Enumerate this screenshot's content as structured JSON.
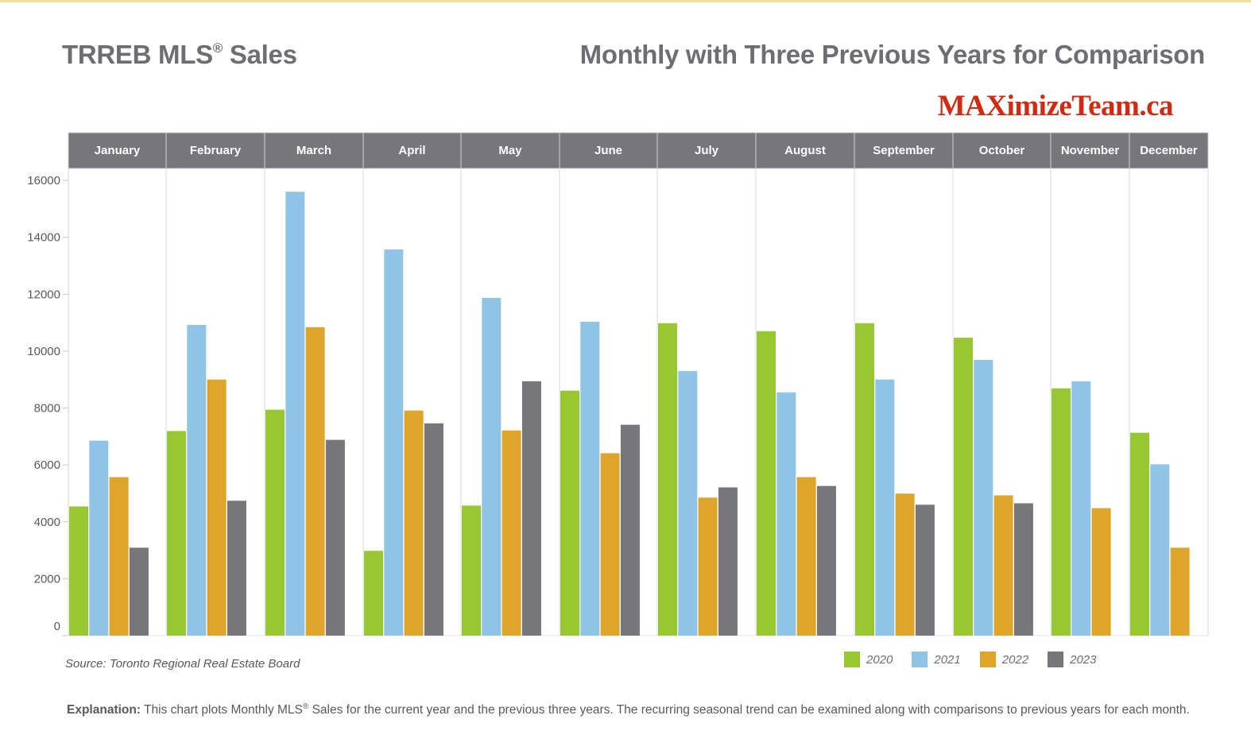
{
  "header": {
    "title_main": "TRREB MLS",
    "title_reg": "®",
    "title_suffix": " Sales",
    "subtitle": "Monthly with Three Previous Years for Comparison",
    "brand": "MAXimizeTeam.ca"
  },
  "footer": {
    "source": "Source: Toronto Regional Real Estate Board",
    "explanation_label": "Explanation:",
    "explanation_pre": " This chart plots Monthly MLS",
    "explanation_reg": "®",
    "explanation_post": " Sales for the current year and the previous three years. The recurring seasonal trend can be examined along with comparisons to previous years for each month."
  },
  "colors": {
    "2020": "#97c732",
    "2021": "#8fc4e6",
    "2022": "#dfa52a",
    "2023": "#77777b",
    "header_bg": "#77777b",
    "grid": "#d9d9d9"
  },
  "chart_data": {
    "type": "bar",
    "title": "TRREB MLS® Sales — Monthly with Three Previous Years for Comparison",
    "xlabel": "",
    "ylabel": "",
    "ylim": [
      0,
      16000
    ],
    "yticks": [
      0,
      2000,
      4000,
      6000,
      8000,
      10000,
      12000,
      14000,
      16000
    ],
    "grid": "vertical month separators",
    "legend_position": "bottom-right",
    "categories": [
      "January",
      "February",
      "March",
      "April",
      "May",
      "June",
      "July",
      "August",
      "September",
      "October",
      "November",
      "December"
    ],
    "series": [
      {
        "name": "2020",
        "color": "#97c732",
        "values": [
          4540,
          7190,
          7940,
          2980,
          4570,
          8610,
          10980,
          10700,
          10980,
          10470,
          8690,
          7130
        ]
      },
      {
        "name": "2021",
        "color": "#8fc4e6",
        "values": [
          6850,
          10920,
          15600,
          13570,
          11870,
          11030,
          9300,
          8550,
          9000,
          9690,
          8940,
          6020
        ]
      },
      {
        "name": "2022",
        "color": "#dfa52a",
        "values": [
          5570,
          9000,
          10840,
          7910,
          7210,
          6410,
          4850,
          5570,
          4990,
          4930,
          4480,
          3090
        ]
      },
      {
        "name": "2023",
        "color": "#77777b",
        "values": [
          3090,
          4740,
          6880,
          7460,
          8940,
          7410,
          5210,
          5260,
          4600,
          4650,
          null,
          null
        ]
      }
    ]
  }
}
